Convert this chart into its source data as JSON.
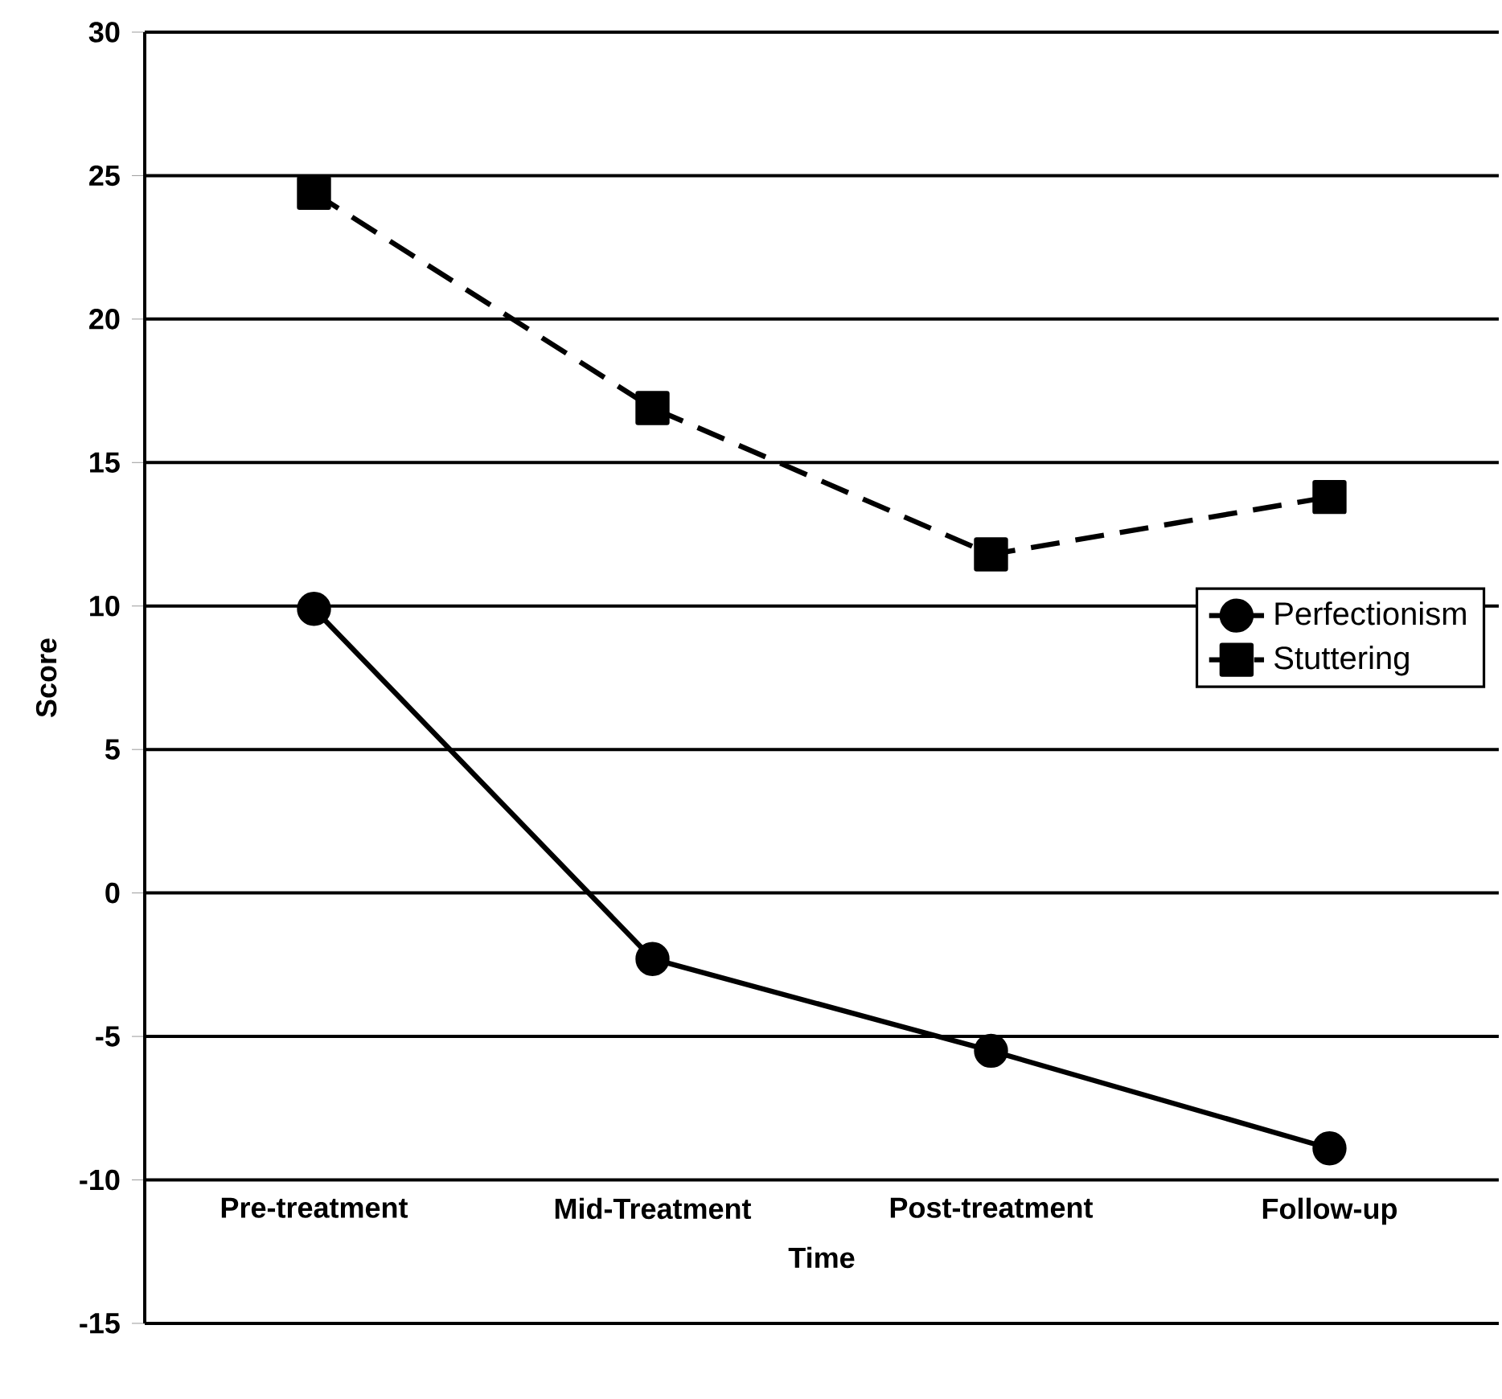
{
  "chart_data": {
    "type": "line",
    "xlabel": "Time",
    "ylabel": "Score",
    "categories": [
      "Pre-treatment",
      "Mid-Treatment",
      "Post-treatment",
      "Follow-up"
    ],
    "series": [
      {
        "name": "Perfectionism",
        "color": "#000000",
        "values": [
          9.9,
          -2.3,
          -5.5,
          -8.9
        ],
        "marker": "circle",
        "line_style": "solid"
      },
      {
        "name": "Stuttering",
        "color": "#000000",
        "values": [
          24.4,
          16.9,
          11.8,
          13.8
        ],
        "marker": "square",
        "line_style": "dashed"
      }
    ],
    "ylim": [
      -15,
      30
    ],
    "yticks": [
      -15,
      -10,
      -5,
      0,
      5,
      10,
      15,
      20,
      25,
      30
    ],
    "grid": "y",
    "legend": "right"
  }
}
